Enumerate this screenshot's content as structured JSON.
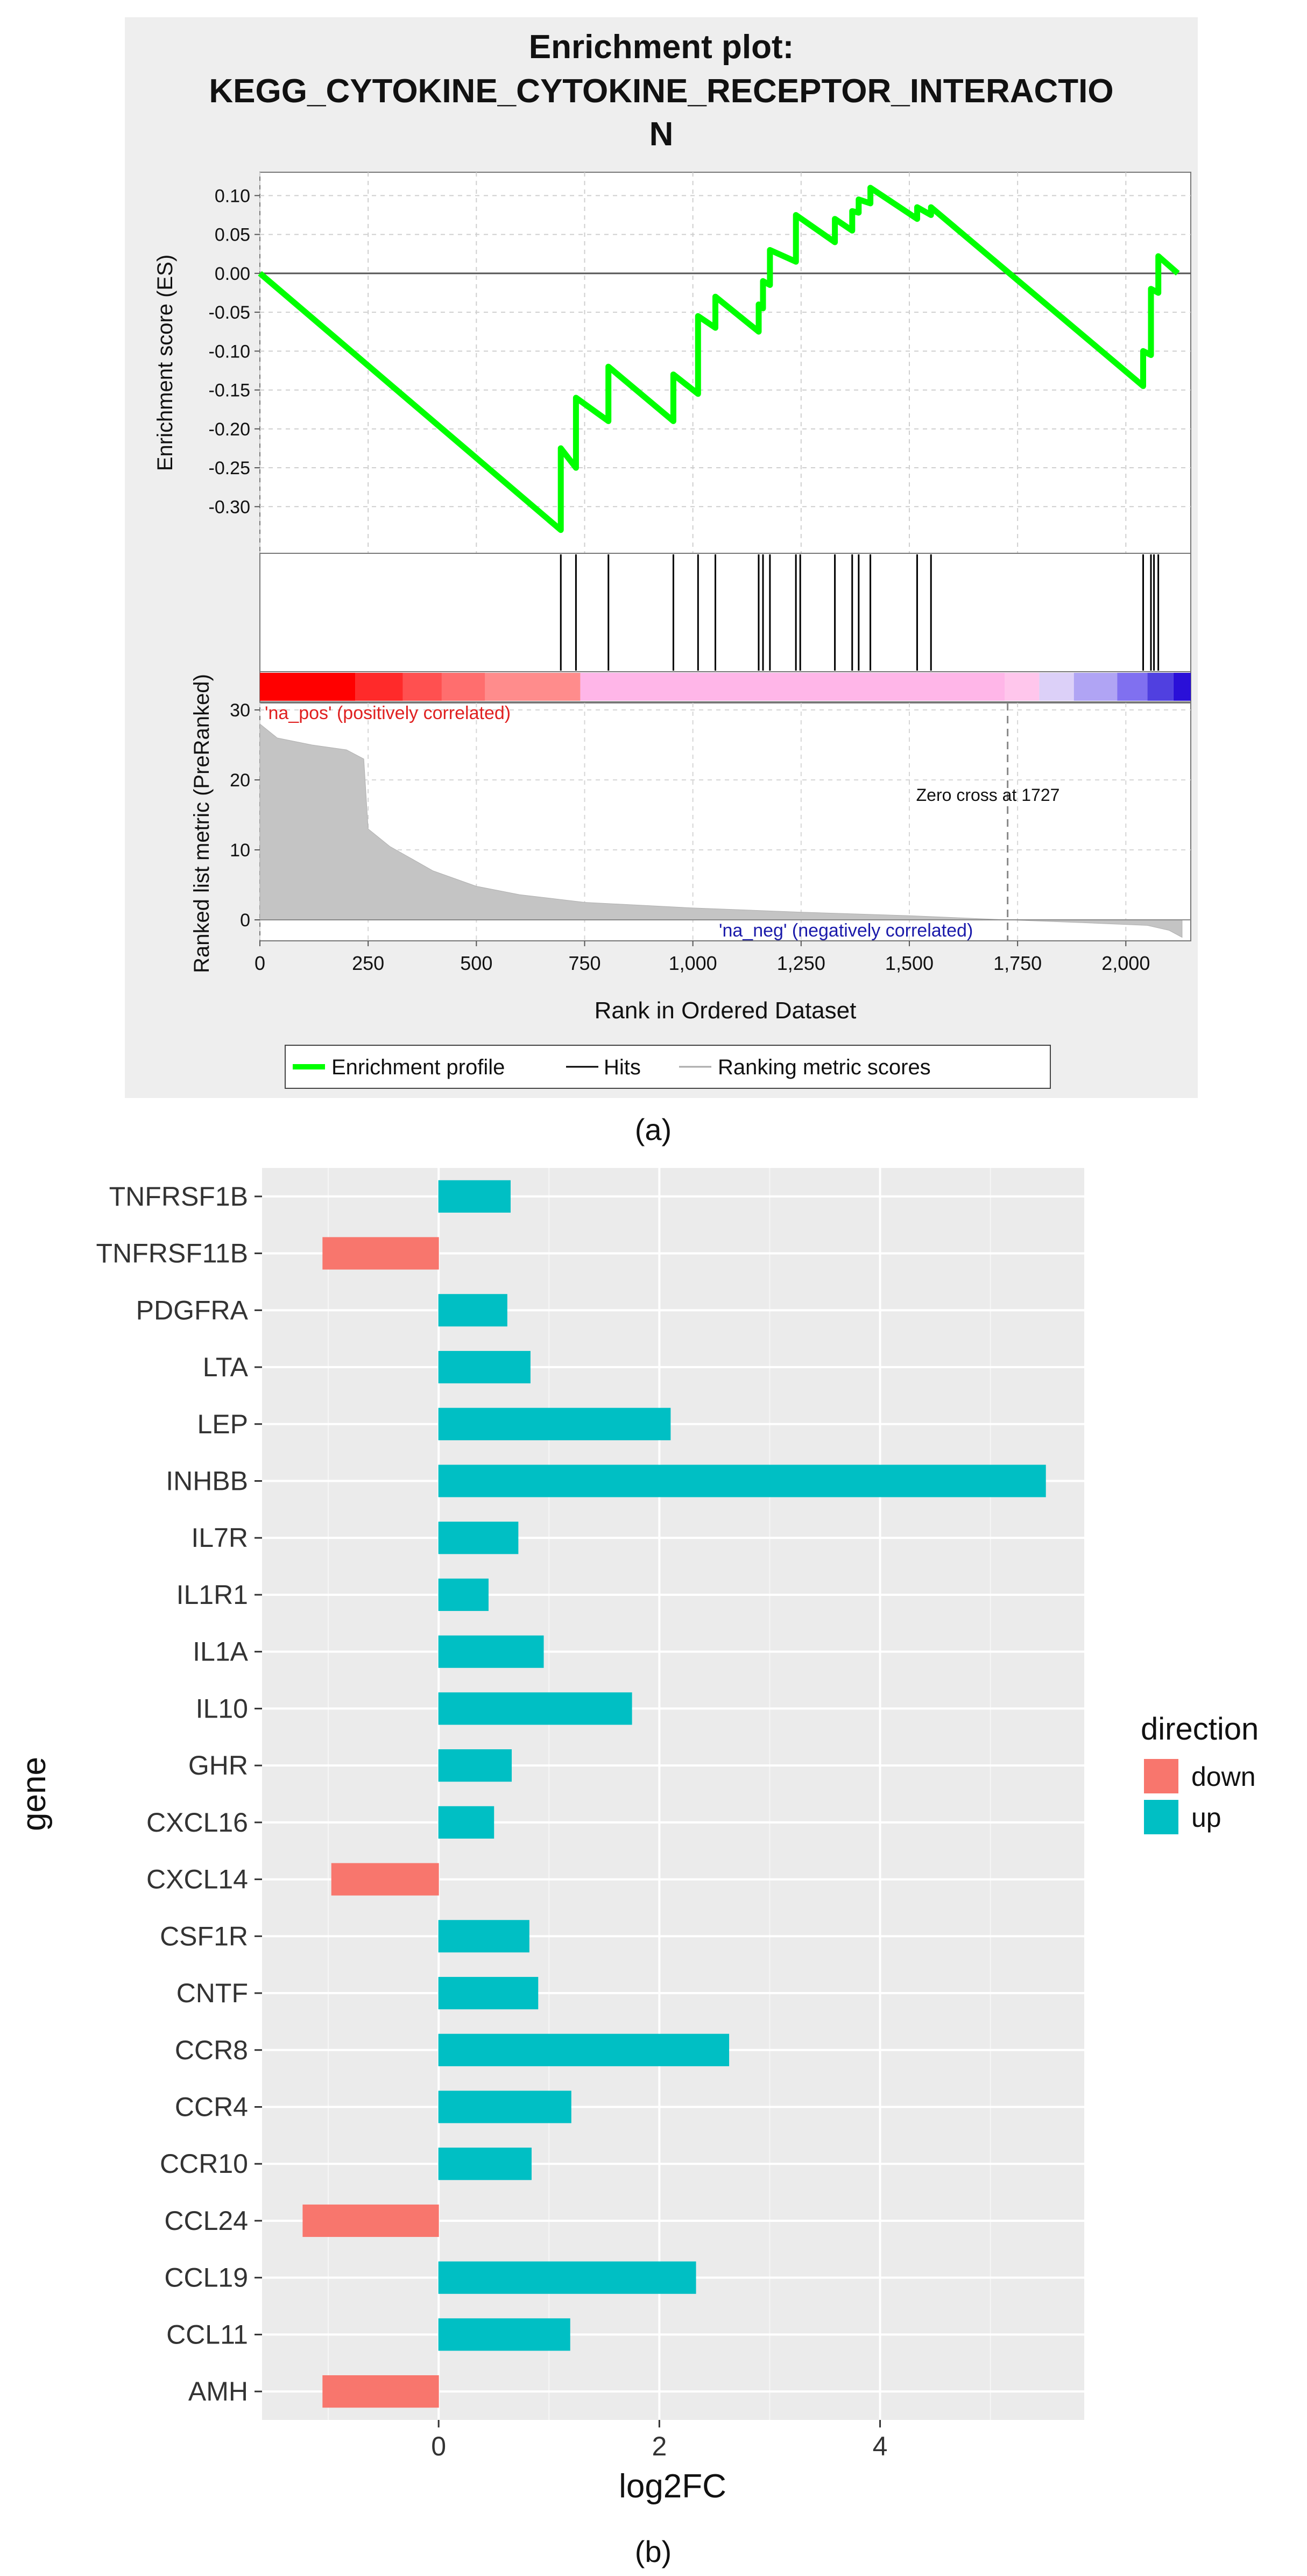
{
  "chart_data": [
    {
      "type": "line",
      "panel_label": "(a)",
      "title_lines": [
        "Enrichment plot:",
        "KEGG_CYTOKINE_CYTOKINE_RECEPTOR_INTERACTIO",
        "N"
      ],
      "ylabel": "Enrichment score (ES)",
      "ylim": [
        -0.36,
        0.13
      ],
      "yticks": [
        0.1,
        0.05,
        0.0,
        -0.05,
        -0.1,
        -0.15,
        -0.2,
        -0.25,
        -0.3
      ],
      "ytick_labels": [
        "0.10",
        "0.05",
        "0.00",
        "-0.05",
        "-0.10",
        "-0.15",
        "-0.20",
        "-0.25",
        "-0.30"
      ],
      "xlim": [
        0,
        2150
      ],
      "xticks": [
        0,
        250,
        500,
        750,
        1000,
        1250,
        1500,
        1750,
        2000
      ],
      "xtick_labels": [
        "0",
        "250",
        "500",
        "750",
        "1,000",
        "1,250",
        "1,500",
        "1,750",
        "2,000"
      ],
      "xlabel": "Rank in Ordered Dataset",
      "grid": true,
      "line_color": "#00ff00",
      "es_profile": [
        [
          0,
          0.0
        ],
        [
          695,
          -0.33
        ],
        [
          695,
          -0.225
        ],
        [
          730,
          -0.25
        ],
        [
          730,
          -0.16
        ],
        [
          805,
          -0.19
        ],
        [
          805,
          -0.12
        ],
        [
          955,
          -0.19
        ],
        [
          955,
          -0.13
        ],
        [
          1012,
          -0.155
        ],
        [
          1012,
          -0.055
        ],
        [
          1052,
          -0.07
        ],
        [
          1052,
          -0.03
        ],
        [
          1152,
          -0.075
        ],
        [
          1152,
          -0.04
        ],
        [
          1162,
          -0.045
        ],
        [
          1162,
          -0.01
        ],
        [
          1178,
          -0.015
        ],
        [
          1178,
          0.03
        ],
        [
          1238,
          0.015
        ],
        [
          1238,
          0.075
        ],
        [
          1328,
          0.04
        ],
        [
          1328,
          0.07
        ],
        [
          1368,
          0.055
        ],
        [
          1368,
          0.08
        ],
        [
          1383,
          0.078
        ],
        [
          1383,
          0.095
        ],
        [
          1410,
          0.09
        ],
        [
          1410,
          0.11
        ],
        [
          1518,
          0.07
        ],
        [
          1518,
          0.085
        ],
        [
          1550,
          0.075
        ],
        [
          1550,
          0.085
        ],
        [
          2040,
          -0.145
        ],
        [
          2040,
          -0.1
        ],
        [
          2058,
          -0.105
        ],
        [
          2058,
          -0.02
        ],
        [
          2075,
          -0.025
        ],
        [
          2075,
          0.022
        ],
        [
          2120,
          0.0
        ]
      ],
      "hits": [
        695,
        730,
        805,
        955,
        1012,
        1052,
        1152,
        1162,
        1178,
        1238,
        1248,
        1328,
        1368,
        1383,
        1410,
        1518,
        1550,
        2040,
        2058,
        2065,
        2075
      ],
      "heatmap_colors": [
        "#ff0000",
        "#ff2a2a",
        "#ff5050",
        "#ff6e6e",
        "#ff8c8c",
        "#ffb6e8",
        "#ffc6ec",
        "#dcd0f8",
        "#b0a4f4",
        "#8070f0",
        "#5040e0",
        "#2a10d8"
      ],
      "heatmap_bounds": [
        0,
        220,
        330,
        420,
        520,
        740,
        1720,
        1800,
        1880,
        1980,
        2050,
        2110,
        2150
      ],
      "metric_ylabel": "Ranked list metric (PreRanked)",
      "metric_ylim": [
        -3,
        31
      ],
      "metric_yticks": [
        30,
        20,
        10,
        0
      ],
      "metric_ytick_labels": [
        "30",
        "20",
        "10",
        "0"
      ],
      "metric_curve": [
        [
          0,
          28
        ],
        [
          40,
          26
        ],
        [
          120,
          25
        ],
        [
          200,
          24.3
        ],
        [
          240,
          23
        ],
        [
          250,
          13
        ],
        [
          300,
          10.5
        ],
        [
          400,
          7
        ],
        [
          500,
          4.8
        ],
        [
          600,
          3.6
        ],
        [
          750,
          2.5
        ],
        [
          1000,
          1.7
        ],
        [
          1250,
          1.1
        ],
        [
          1500,
          0.6
        ],
        [
          1727,
          0
        ],
        [
          1900,
          -0.4
        ],
        [
          2050,
          -0.8
        ],
        [
          2100,
          -1.5
        ],
        [
          2130,
          -2.5
        ]
      ],
      "pos_label": "'na_pos' (positively correlated)",
      "neg_label": "'na_neg' (negatively correlated)",
      "zero_cross_value": 1727,
      "zero_cross_label": "Zero cross at 1727",
      "legend": [
        "Enrichment profile",
        "Hits",
        "Ranking metric scores"
      ]
    },
    {
      "type": "bar",
      "orientation": "horizontal",
      "panel_label": "(b)",
      "categories": [
        "TNFRSF1B",
        "TNFRSF11B",
        "PDGFRA",
        "LTA",
        "LEP",
        "INHBB",
        "IL7R",
        "IL1R1",
        "IL1A",
        "IL10",
        "GHR",
        "CXCL16",
        "CXCL14",
        "CSF1R",
        "CNTF",
        "CCR8",
        "CCR4",
        "CCR10",
        "CCL24",
        "CCL19",
        "CCL11",
        "AMH"
      ],
      "values": [
        0.65,
        -1.05,
        0.62,
        0.83,
        2.1,
        5.5,
        0.72,
        0.45,
        0.95,
        1.75,
        0.66,
        0.5,
        -0.97,
        0.82,
        0.9,
        2.63,
        1.2,
        0.84,
        -1.23,
        2.33,
        1.19,
        -1.05
      ],
      "direction": [
        "up",
        "down",
        "up",
        "up",
        "up",
        "up",
        "up",
        "up",
        "up",
        "up",
        "up",
        "up",
        "down",
        "up",
        "up",
        "up",
        "up",
        "up",
        "down",
        "up",
        "up",
        "down"
      ],
      "xlabel": "log2FC",
      "ylabel": "gene",
      "xlim": [
        -1.6,
        5.85
      ],
      "xticks": [
        0,
        2,
        4
      ],
      "xtick_labels": [
        "0",
        "2",
        "4"
      ],
      "legend_title": "direction",
      "legend": [
        {
          "name": "down",
          "color": "#f8766d"
        },
        {
          "name": "up",
          "color": "#00bfc4"
        }
      ]
    }
  ]
}
